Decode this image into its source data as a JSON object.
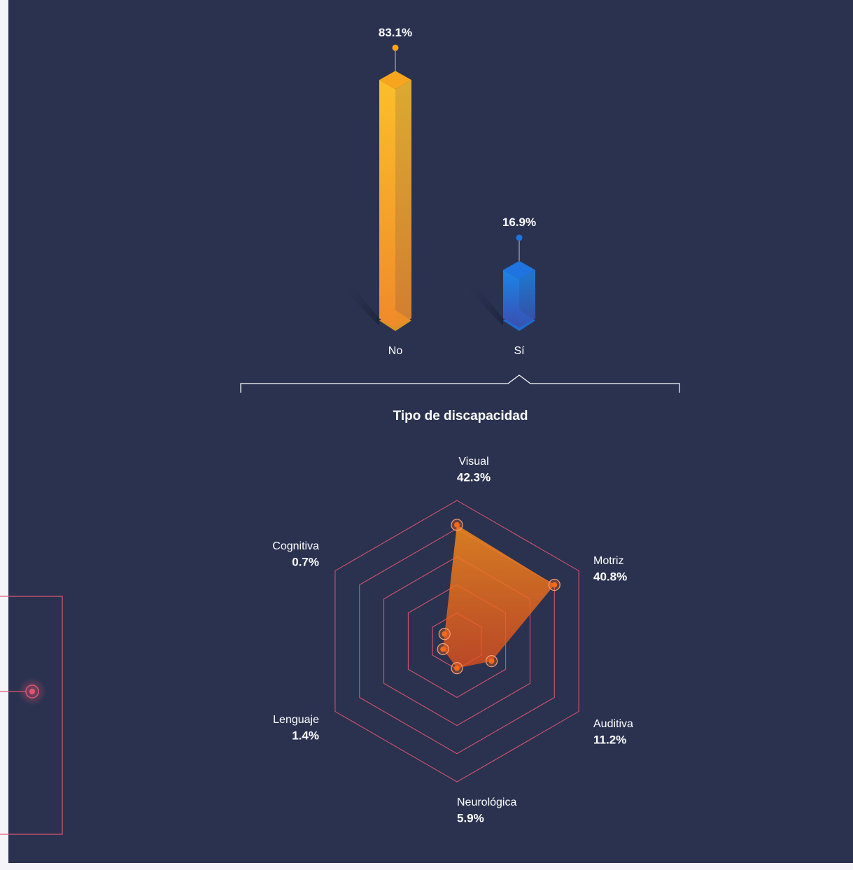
{
  "chart_data": [
    {
      "type": "bar3d",
      "categories": [
        "No",
        "Sí"
      ],
      "values": [
        83.1,
        16.9
      ],
      "value_labels": [
        "83.1%",
        "16.9%"
      ],
      "colors": [
        "#f7a51f",
        "#1f74e0"
      ]
    },
    {
      "type": "radar",
      "title": "Tipo de discapacidad",
      "categories": [
        "Visual",
        "Motriz",
        "Auditiva",
        "Neurológica",
        "Lenguaje",
        "Cognitiva"
      ],
      "values": [
        42.3,
        40.8,
        11.2,
        5.9,
        1.4,
        0.7
      ],
      "value_labels": [
        "42.3%",
        "40.8%",
        "11.2%",
        "5.9%",
        "1.4%",
        "0.7%"
      ],
      "color": "#f26a1b",
      "grid_color": "#e0566e"
    }
  ]
}
